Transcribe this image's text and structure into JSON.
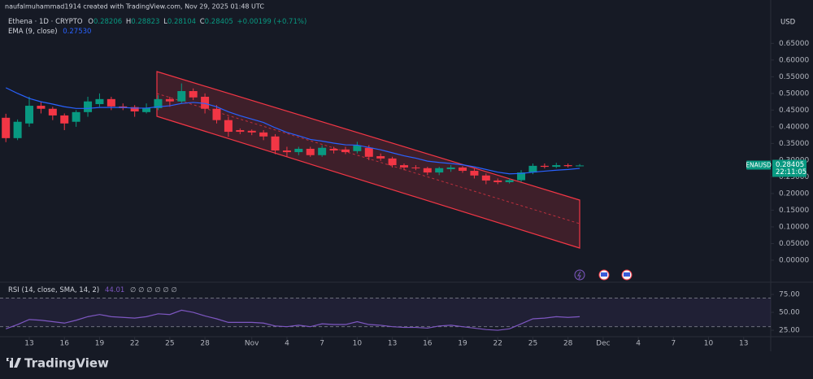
{
  "watermark": "naufalmuhammad1914 created with TradingView.com, Nov 29, 2025 01:48 UTC",
  "currency": "USD",
  "brand": "TradingView",
  "chart_data": [
    {
      "type": "candlestick",
      "title": "Ethena · 1D · CRYPTO",
      "ohlc_letters": [
        "O",
        "H",
        "L",
        "C"
      ],
      "change": "+0.00199 (+0.71%)",
      "symbol_label": "ENAUSD",
      "countdown": "22:11:05",
      "up_color": "#089981",
      "down_color": "#f23645",
      "x": [
        11,
        12,
        13,
        14,
        15,
        16,
        17,
        18,
        19,
        20,
        21,
        22,
        23,
        24,
        25,
        26,
        27,
        28,
        29,
        30,
        31,
        32,
        33,
        34,
        35,
        36,
        37,
        38,
        39,
        40,
        41,
        42,
        43,
        44,
        45,
        46,
        47,
        48,
        49,
        50,
        51,
        52,
        53,
        54,
        55,
        56,
        57,
        58,
        59,
        60
      ],
      "open": [
        0.427,
        0.366,
        0.41,
        0.463,
        0.454,
        0.434,
        0.415,
        0.444,
        0.468,
        0.483,
        0.461,
        0.459,
        0.444,
        0.456,
        0.483,
        0.476,
        0.507,
        0.49,
        0.454,
        0.42,
        0.39,
        0.388,
        0.383,
        0.371,
        0.329,
        0.324,
        0.334,
        0.315,
        0.334,
        0.332,
        0.327,
        0.337,
        0.312,
        0.305,
        0.285,
        0.278,
        0.276,
        0.263,
        0.273,
        0.278,
        0.268,
        0.254,
        0.239,
        0.234,
        0.24,
        0.263,
        0.283,
        0.28,
        0.285,
        0.28206
      ],
      "high": [
        0.439,
        0.422,
        0.49,
        0.475,
        0.46,
        0.44,
        0.45,
        0.49,
        0.5,
        0.49,
        0.47,
        0.465,
        0.47,
        0.495,
        0.49,
        0.53,
        0.515,
        0.5,
        0.465,
        0.43,
        0.395,
        0.392,
        0.39,
        0.378,
        0.34,
        0.34,
        0.34,
        0.345,
        0.34,
        0.34,
        0.355,
        0.345,
        0.32,
        0.31,
        0.29,
        0.285,
        0.28,
        0.28,
        0.285,
        0.282,
        0.275,
        0.26,
        0.245,
        0.245,
        0.27,
        0.29,
        0.29,
        0.292,
        0.29,
        0.28823
      ],
      "low": [
        0.354,
        0.36,
        0.4,
        0.44,
        0.42,
        0.39,
        0.4,
        0.43,
        0.46,
        0.45,
        0.45,
        0.43,
        0.44,
        0.45,
        0.46,
        0.47,
        0.48,
        0.44,
        0.41,
        0.37,
        0.378,
        0.375,
        0.36,
        0.318,
        0.31,
        0.315,
        0.31,
        0.31,
        0.32,
        0.318,
        0.32,
        0.3,
        0.298,
        0.278,
        0.27,
        0.27,
        0.255,
        0.255,
        0.265,
        0.262,
        0.245,
        0.228,
        0.228,
        0.23,
        0.235,
        0.258,
        0.275,
        0.276,
        0.278,
        0.28104
      ],
      "close": [
        0.366,
        0.415,
        0.463,
        0.454,
        0.434,
        0.41,
        0.444,
        0.476,
        0.483,
        0.461,
        0.456,
        0.446,
        0.456,
        0.483,
        0.476,
        0.507,
        0.488,
        0.454,
        0.42,
        0.385,
        0.385,
        0.383,
        0.371,
        0.329,
        0.324,
        0.334,
        0.315,
        0.337,
        0.329,
        0.324,
        0.344,
        0.31,
        0.305,
        0.285,
        0.278,
        0.276,
        0.263,
        0.276,
        0.278,
        0.268,
        0.254,
        0.239,
        0.234,
        0.24,
        0.263,
        0.283,
        0.28,
        0.285,
        0.282,
        0.28405
      ],
      "series": [
        {
          "name": "EMA (9, close)",
          "color": "#2962ff",
          "value_label": "0.27530",
          "values": [
            0.517,
            0.5,
            0.485,
            0.475,
            0.468,
            0.46,
            0.455,
            0.455,
            0.458,
            0.458,
            0.458,
            0.456,
            0.456,
            0.46,
            0.463,
            0.47,
            0.473,
            0.47,
            0.46,
            0.445,
            0.433,
            0.423,
            0.413,
            0.397,
            0.383,
            0.373,
            0.362,
            0.357,
            0.351,
            0.346,
            0.345,
            0.338,
            0.331,
            0.322,
            0.313,
            0.306,
            0.297,
            0.293,
            0.29,
            0.286,
            0.28,
            0.272,
            0.264,
            0.259,
            0.26,
            0.264,
            0.267,
            0.27,
            0.272,
            0.2753
          ]
        }
      ],
      "xlim": [
        10.5,
        76.1
      ],
      "xticks": [
        13,
        16,
        19,
        22,
        25,
        28,
        {
          "value": 32,
          "label": "Nov"
        },
        {
          "value": 35,
          "label": "4"
        },
        {
          "value": 38,
          "label": "7"
        },
        {
          "value": 41,
          "label": "10"
        },
        {
          "value": 44,
          "label": "13"
        },
        {
          "value": 47,
          "label": "16"
        },
        {
          "value": 50,
          "label": "19"
        },
        {
          "value": 53,
          "label": "22"
        },
        {
          "value": 56,
          "label": "25"
        },
        {
          "value": 59,
          "label": "28"
        },
        {
          "value": 62,
          "label": "Dec"
        },
        {
          "value": 65,
          "label": "4"
        },
        {
          "value": 68,
          "label": "7"
        },
        {
          "value": 71,
          "label": "10"
        },
        {
          "value": 74,
          "label": "13"
        }
      ],
      "ylim": [
        -0.061,
        0.78
      ],
      "yticks": [
        {
          "value": 0,
          "label": "0.00000"
        },
        {
          "value": 0.05,
          "label": "0.05000"
        },
        {
          "value": 0.1,
          "label": "0.10000"
        },
        {
          "value": 0.15,
          "label": "0.15000"
        },
        {
          "value": 0.2,
          "label": "0.20000"
        },
        {
          "value": 0.25,
          "label": "0.25000"
        },
        {
          "value": 0.3,
          "label": "0.30000"
        },
        {
          "value": 0.35,
          "label": "0.35000"
        },
        {
          "value": 0.4,
          "label": "0.40000"
        },
        {
          "value": 0.45,
          "label": "0.45000"
        },
        {
          "value": 0.5,
          "label": "0.50000"
        },
        {
          "value": 0.55,
          "label": "0.55000"
        },
        {
          "value": 0.6,
          "label": "0.60000"
        },
        {
          "value": 0.65,
          "label": "0.65000"
        }
      ]
    },
    {
      "type": "line",
      "title": "RSI (14, close, SMA, 14, 2)",
      "na_marks": "∅ ∅ ∅ ∅ ∅ ∅",
      "color": "#7e57c2",
      "band": [
        30,
        70
      ],
      "values": [
        27,
        33,
        40,
        39,
        37,
        35,
        39,
        44,
        47,
        44,
        43,
        42,
        44,
        48,
        47,
        53,
        50,
        45,
        41,
        36,
        36,
        36,
        35,
        31,
        30,
        32,
        30,
        34,
        33,
        33,
        37,
        33,
        32,
        30,
        29,
        29,
        28,
        31,
        32,
        30,
        28,
        26,
        25,
        27,
        34,
        41,
        42,
        44,
        43,
        44.01
      ],
      "ylim": [
        16,
        88.7
      ],
      "yticks": [
        {
          "value": 25,
          "label": "25.00"
        },
        {
          "value": 50,
          "label": "50.00"
        },
        {
          "value": 75,
          "label": "75.00"
        }
      ]
    }
  ]
}
